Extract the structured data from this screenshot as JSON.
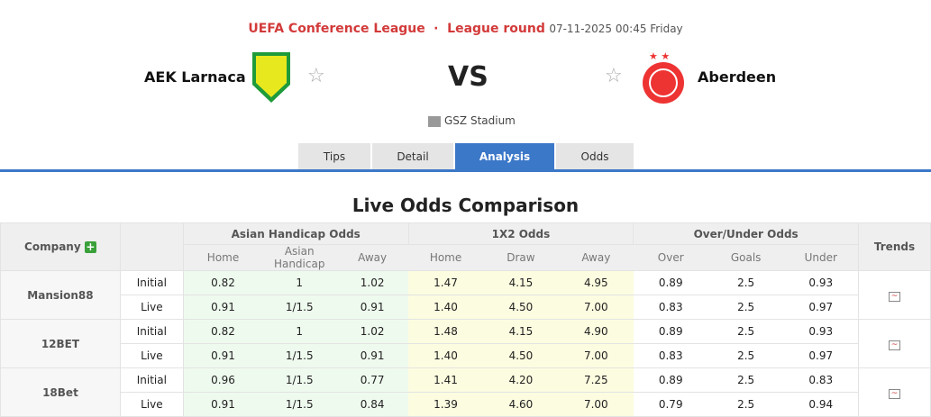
{
  "header": {
    "league": "UEFA Conference League",
    "round": "League round",
    "datetime": "07-11-2025 00:45 Friday",
    "home": "AEK Larnaca",
    "away": "Aberdeen",
    "vs": "VS",
    "stadium": "GSZ Stadium"
  },
  "tabs": [
    "Tips",
    "Detail",
    "Analysis",
    "Odds"
  ],
  "active_tab": "Analysis",
  "section_title": "Live Odds Comparison",
  "table": {
    "company": "Company",
    "ah": "Asian Handicap Odds",
    "x12": "1X2 Odds",
    "ou": "Over/Under Odds",
    "trends": "Trends",
    "sub": [
      "Home",
      "Asian Handicap",
      "Away",
      "Home",
      "Draw",
      "Away",
      "Over",
      "Goals",
      "Under"
    ],
    "rows": [
      {
        "company": "Mansion88",
        "lines": [
          {
            "type": "Initial",
            "v": [
              "0.82",
              "1",
              "1.02",
              "1.47",
              "4.15",
              "4.95",
              "0.89",
              "2.5",
              "0.93"
            ]
          },
          {
            "type": "Live",
            "v": [
              "0.91",
              "1/1.5",
              "0.91",
              "1.40",
              "4.50",
              "7.00",
              "0.83",
              "2.5",
              "0.97"
            ]
          }
        ]
      },
      {
        "company": "12BET",
        "lines": [
          {
            "type": "Initial",
            "v": [
              "0.82",
              "1",
              "1.02",
              "1.48",
              "4.15",
              "4.90",
              "0.89",
              "2.5",
              "0.93"
            ]
          },
          {
            "type": "Live",
            "v": [
              "0.91",
              "1/1.5",
              "0.91",
              "1.40",
              "4.50",
              "7.00",
              "0.83",
              "2.5",
              "0.97"
            ]
          }
        ]
      },
      {
        "company": "18Bet",
        "lines": [
          {
            "type": "Initial",
            "v": [
              "0.96",
              "1/1.5",
              "0.77",
              "1.41",
              "4.20",
              "7.25",
              "0.89",
              "2.5",
              "0.83"
            ]
          },
          {
            "type": "Live",
            "v": [
              "0.91",
              "1/1.5",
              "0.84",
              "1.39",
              "4.60",
              "7.00",
              "0.79",
              "2.5",
              "0.94"
            ]
          }
        ]
      }
    ]
  }
}
